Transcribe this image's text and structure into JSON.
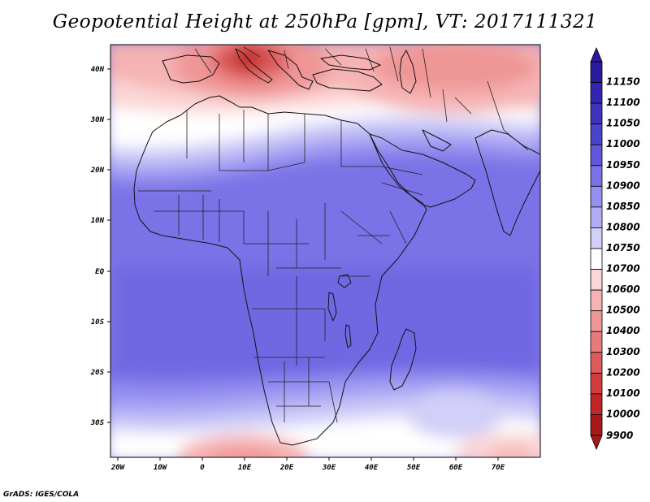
{
  "title": "Geopotential Height at 250hPa [gpm], VT: 2017111321",
  "credit": "GrADS: IGES/COLA",
  "axes": {
    "lon_labels": [
      "20W",
      "10W",
      "0",
      "10E",
      "20E",
      "30E",
      "40E",
      "50E",
      "60E",
      "70E"
    ],
    "lat_labels": [
      "40N",
      "30N",
      "20N",
      "10N",
      "EQ",
      "10S",
      "20S",
      "30S"
    ]
  },
  "colorbar": {
    "levels": [
      "11150",
      "11100",
      "11050",
      "11000",
      "10950",
      "10900",
      "10850",
      "10800",
      "10750",
      "10700",
      "10600",
      "10500",
      "10400",
      "10300",
      "10200",
      "10100",
      "10000",
      "9900"
    ],
    "colors": [
      "#2a1a9c",
      "#3225b0",
      "#3d33bd",
      "#4a44cc",
      "#6058da",
      "#7a72e6",
      "#958ff0",
      "#b2adf4",
      "#d2cff8",
      "#ffffff",
      "#fbd6d6",
      "#f6b3b3",
      "#ef9696",
      "#e77a7a",
      "#dd5b5b",
      "#d33d3d",
      "#c32626",
      "#a71818"
    ],
    "units": "gpm"
  },
  "map": {
    "region": "Africa and surrounding areas",
    "lon_range": [
      -22,
      80
    ],
    "lat_range": [
      -37,
      45
    ]
  }
}
